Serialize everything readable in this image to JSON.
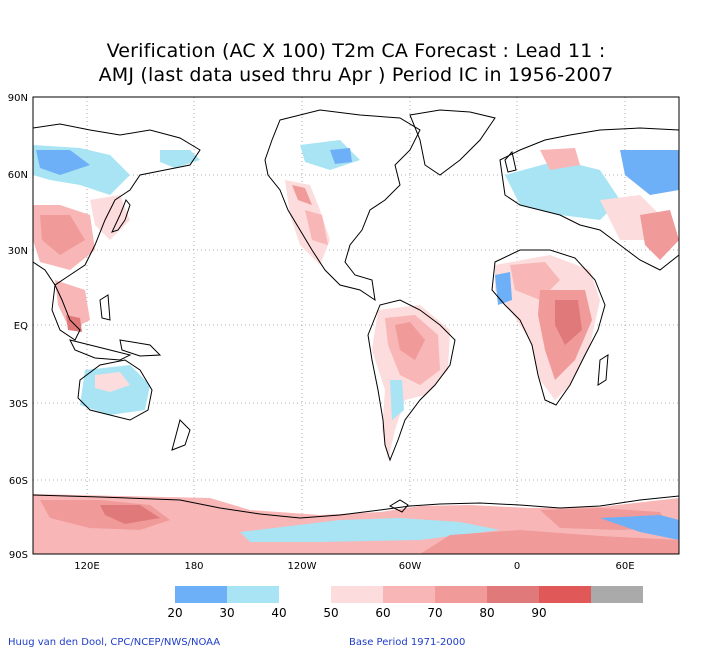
{
  "title": {
    "line1": "Verification (AC X 100) T2m CA Forecast : Lead 11 :",
    "line2": "AMJ (last data used thru Apr ) Period IC in 1956-2007"
  },
  "map": {
    "lat_labels": [
      "90N",
      "60N",
      "30N",
      "EQ",
      "30S",
      "60S",
      "90S"
    ],
    "lon_labels": [
      "120E",
      "180",
      "120W",
      "60W",
      "0",
      "60E"
    ],
    "grid": true
  },
  "legend": {
    "labels": [
      "20",
      "30",
      "40",
      "50",
      "60",
      "70",
      "80",
      "90"
    ],
    "colors": [
      "#6eb0f8",
      "#a8e4f4",
      "#ffffff",
      "#fcdcdc",
      "#f8b6b6",
      "#f09a9a",
      "#e07a7a",
      "#e05858",
      "#aaaaaa"
    ]
  },
  "credits": {
    "left": "Huug van den Dool, CPC/NCEP/NWS/NOAA",
    "right": "Base Period 1971-2000"
  }
}
